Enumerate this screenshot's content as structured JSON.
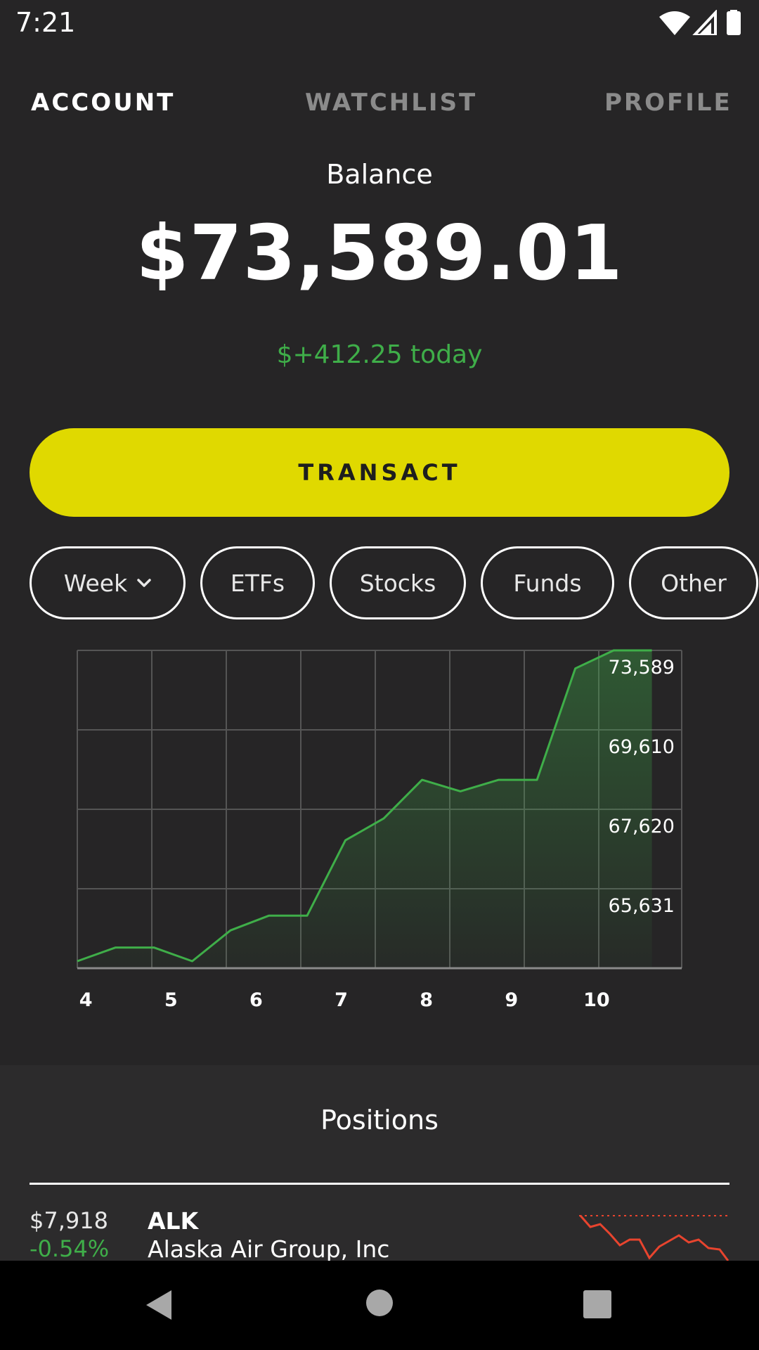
{
  "status_bar": {
    "time": "7:21"
  },
  "tabs": [
    {
      "label": "ACCOUNT",
      "active": true
    },
    {
      "label": "WATCHLIST",
      "active": false
    },
    {
      "label": "PROFILE",
      "active": false
    }
  ],
  "balance": {
    "label": "Balance",
    "value": "$73,589.01",
    "today_change": "$+412.25 today"
  },
  "transact_label": "TRANSACT",
  "filters": [
    {
      "label": "Week"
    },
    {
      "label": "ETFs"
    },
    {
      "label": "Stocks"
    },
    {
      "label": "Funds"
    },
    {
      "label": "Other"
    }
  ],
  "colors": {
    "accent": "#e0d900",
    "positive": "#3fae49",
    "negative": "#e8442e",
    "background": "#262526"
  },
  "chart_data": {
    "type": "area",
    "x": [
      3.9,
      4.35,
      4.8,
      5.25,
      5.7,
      6.15,
      6.6,
      7.05,
      7.5,
      7.95,
      8.4,
      8.85,
      9.3,
      9.75,
      10.2,
      10.65
    ],
    "y": [
      63820,
      64250,
      64250,
      63820,
      64790,
      65250,
      65250,
      67620,
      68310,
      69520,
      69160,
      69520,
      69520,
      73020,
      73589,
      73589
    ],
    "x_tick_labels": [
      "4",
      "5",
      "6",
      "7",
      "8",
      "9",
      "10"
    ],
    "y_tick_labels": [
      "73,589",
      "69,610",
      "67,620",
      "65,631"
    ],
    "xlim": [
      3.9,
      11.0
    ],
    "ylim": [
      63600,
      73589
    ],
    "grid": true,
    "line_color": "#3fae49"
  },
  "positions": {
    "title": "Positions",
    "items": [
      {
        "value": "$7,918",
        "change": "-0.54%",
        "symbol": "ALK",
        "name": "Alaska Air Group, Inc"
      }
    ]
  }
}
